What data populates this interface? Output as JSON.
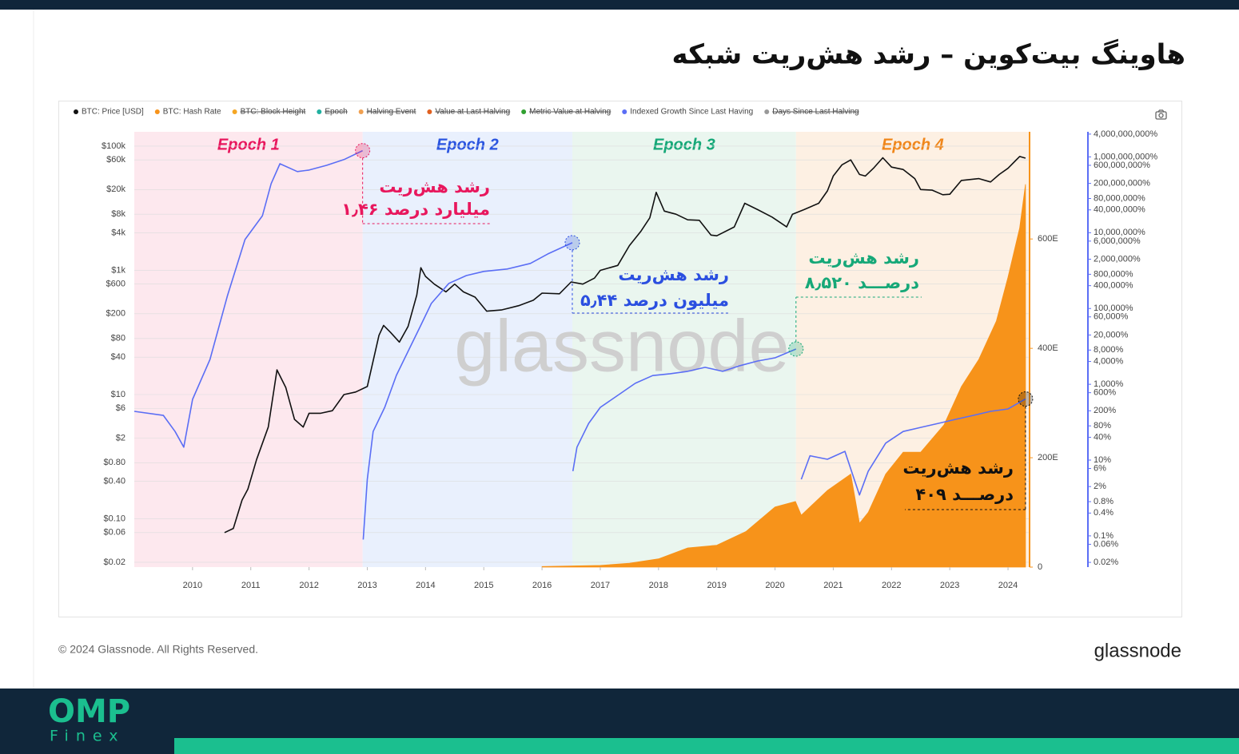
{
  "page_title": "هاوینگ بیت‌کوین – رشد هش‌ریت شبکه",
  "brand": "glassnode",
  "copyright": "© 2024 Glassnode. All Rights Reserved.",
  "logo": {
    "top": "OMP",
    "bottom": "Finex"
  },
  "chart_data": {
    "type": "line",
    "xlim": [
      2009.0,
      2024.37
    ],
    "xticks": [
      2010,
      2011,
      2012,
      2013,
      2014,
      2015,
      2016,
      2017,
      2018,
      2019,
      2020,
      2021,
      2022,
      2023,
      2024
    ],
    "ylim": [
      0.0167,
      170000
    ],
    "ylog": true,
    "yticks": [
      {
        "value": 100000,
        "label": "$100k"
      },
      {
        "value": 60000,
        "label": "$60k"
      },
      {
        "value": 20000,
        "label": "$20k"
      },
      {
        "value": 8000,
        "label": "$8k"
      },
      {
        "value": 4000,
        "label": "$4k"
      },
      {
        "value": 1000,
        "label": "$1k"
      },
      {
        "value": 600,
        "label": "$600"
      },
      {
        "value": 200,
        "label": "$200"
      },
      {
        "value": 80,
        "label": "$80"
      },
      {
        "value": 40,
        "label": "$40"
      },
      {
        "value": 10,
        "label": "$10"
      },
      {
        "value": 6,
        "label": "$6"
      },
      {
        "value": 2,
        "label": "$2"
      },
      {
        "value": 0.8,
        "label": "$0.80"
      },
      {
        "value": 0.4,
        "label": "$0.40"
      },
      {
        "value": 0.1,
        "label": "$0.10"
      },
      {
        "value": 0.06,
        "label": "$0.06"
      },
      {
        "value": 0.02,
        "label": "$0.02"
      }
    ],
    "y2lim": [
      0,
      796
    ],
    "y2ticks": [
      {
        "value": 600,
        "label": "600E"
      },
      {
        "value": 400,
        "label": "400E"
      },
      {
        "value": 200,
        "label": "200E"
      },
      0
    ],
    "y3lim": [
      0.015,
      4600000000
    ],
    "y3log": true,
    "y3ticks": [
      {
        "value": 4000000000,
        "label": "4,000,000,000%"
      },
      {
        "value": 1000000000,
        "label": "1,000,000,000%"
      },
      {
        "value": 600000000,
        "label": "600,000,000%"
      },
      {
        "value": 200000000,
        "label": "200,000,000%"
      },
      {
        "value": 80000000,
        "label": "80,000,000%"
      },
      {
        "value": 40000000,
        "label": "40,000,000%"
      },
      {
        "value": 10000000,
        "label": "10,000,000%"
      },
      {
        "value": 6000000,
        "label": "6,000,000%"
      },
      {
        "value": 2000000,
        "label": "2,000,000%"
      },
      {
        "value": 800000,
        "label": "800,000%"
      },
      {
        "value": 400000,
        "label": "400,000%"
      },
      {
        "value": 100000,
        "label": "100,000%"
      },
      {
        "value": 60000,
        "label": "60,000%"
      },
      {
        "value": 20000,
        "label": "20,000%"
      },
      {
        "value": 8000,
        "label": "8,000%"
      },
      {
        "value": 4000,
        "label": "4,000%"
      },
      {
        "value": 1000,
        "label": "1,000%"
      },
      {
        "value": 600,
        "label": "600%"
      },
      {
        "value": 200,
        "label": "200%"
      },
      {
        "value": 80,
        "label": "80%"
      },
      {
        "value": 40,
        "label": "40%"
      },
      {
        "value": 10,
        "label": "10%"
      },
      {
        "value": 6,
        "label": "6%"
      },
      {
        "value": 2,
        "label": "2%"
      },
      {
        "value": 0.8,
        "label": "0.8%"
      },
      {
        "value": 0.4,
        "label": "0.4%"
      },
      {
        "value": 0.1,
        "label": "0.1%"
      },
      {
        "value": 0.06,
        "label": "0.06%"
      },
      {
        "value": 0.02,
        "label": "0.02%"
      }
    ],
    "grid": true,
    "watermark": "glassnode",
    "epochs": [
      {
        "label": "Epoch 1",
        "start": 2009.0,
        "end": 2012.92,
        "color": "#e8175d",
        "band": "#fde8ee"
      },
      {
        "label": "Epoch 2",
        "start": 2012.92,
        "end": 2016.52,
        "color": "#2b55e0",
        "band": "#e9f0fd"
      },
      {
        "label": "Epoch 3",
        "start": 2016.52,
        "end": 2020.36,
        "color": "#16a878",
        "band": "#eaf6ef"
      },
      {
        "label": "Epoch 4",
        "start": 2020.36,
        "end": 2024.37,
        "color": "#f0861a",
        "band": "#fdf0e3"
      }
    ],
    "series": [
      {
        "name": "BTC: Price [USD]",
        "type": "line",
        "axis": "y",
        "color": "#111111",
        "x": [
          2010.55,
          2010.7,
          2010.85,
          2010.95,
          2011.1,
          2011.3,
          2011.45,
          2011.6,
          2011.75,
          2011.9,
          2012.0,
          2012.2,
          2012.4,
          2012.6,
          2012.8,
          2013.0,
          2013.2,
          2013.28,
          2013.4,
          2013.55,
          2013.7,
          2013.85,
          2013.92,
          2014.0,
          2014.15,
          2014.35,
          2014.5,
          2014.65,
          2014.85,
          2015.05,
          2015.3,
          2015.6,
          2015.85,
          2016.0,
          2016.3,
          2016.5,
          2016.7,
          2016.9,
          2017.0,
          2017.3,
          2017.5,
          2017.7,
          2017.85,
          2017.96,
          2018.1,
          2018.3,
          2018.5,
          2018.7,
          2018.9,
          2019.0,
          2019.3,
          2019.48,
          2019.7,
          2019.95,
          2020.2,
          2020.3,
          2020.5,
          2020.75,
          2020.9,
          2021.0,
          2021.15,
          2021.3,
          2021.45,
          2021.55,
          2021.7,
          2021.85,
          2022.0,
          2022.2,
          2022.4,
          2022.5,
          2022.7,
          2022.88,
          2023.0,
          2023.2,
          2023.5,
          2023.7,
          2023.85,
          2024.0,
          2024.2,
          2024.3
        ],
        "values": [
          0.06,
          0.07,
          0.2,
          0.3,
          0.9,
          3,
          25,
          13,
          4,
          3,
          5,
          5,
          5.5,
          10,
          11,
          13.5,
          90,
          130,
          100,
          70,
          125,
          400,
          1100,
          800,
          600,
          450,
          600,
          450,
          370,
          220,
          230,
          270,
          330,
          430,
          420,
          650,
          600,
          750,
          1000,
          1200,
          2500,
          4300,
          7000,
          18000,
          9000,
          8000,
          6500,
          6400,
          3700,
          3600,
          5000,
          12000,
          9500,
          7200,
          5000,
          8000,
          9500,
          12000,
          19000,
          33000,
          50000,
          60000,
          35000,
          33000,
          45000,
          65000,
          46000,
          42000,
          30000,
          20000,
          19500,
          16500,
          16800,
          28000,
          30000,
          26500,
          35000,
          44000,
          68000,
          64000
        ]
      },
      {
        "name": "BTC: Hash Rate",
        "type": "area",
        "axis": "y2",
        "color": "#f7931a",
        "x": [
          2016.0,
          2017.0,
          2017.5,
          2018.0,
          2018.5,
          2019.0,
          2019.5,
          2020.0,
          2020.35,
          2020.45,
          2020.9,
          2021.3,
          2021.45,
          2021.6,
          2021.9,
          2022.2,
          2022.5,
          2022.9,
          2023.2,
          2023.5,
          2023.8,
          2024.0,
          2024.2,
          2024.3
        ],
        "values": [
          1,
          3,
          7,
          15,
          35,
          40,
          65,
          110,
          120,
          95,
          140,
          170,
          80,
          100,
          170,
          210,
          210,
          260,
          330,
          380,
          450,
          530,
          620,
          700
        ]
      },
      {
        "name": "Indexed Growth Since Last Having",
        "type": "line",
        "axis": "y3",
        "color": "#5b6ef5",
        "x": [
          2009.0,
          2009.5,
          2009.7,
          2009.85,
          2010.0,
          2010.3,
          2010.6,
          2010.9,
          2011.2,
          2011.35,
          2011.5,
          2011.8,
          2012.0,
          2012.3,
          2012.6,
          2012.92,
          2012.92,
          2012.93,
          2013.0,
          2013.1,
          2013.3,
          2013.5,
          2013.7,
          2013.9,
          2014.1,
          2014.4,
          2014.7,
          2015.0,
          2015.4,
          2015.8,
          2016.1,
          2016.52,
          2016.52,
          2016.53,
          2016.6,
          2016.8,
          2017.0,
          2017.3,
          2017.6,
          2017.9,
          2018.2,
          2018.5,
          2018.8,
          2019.1,
          2019.4,
          2019.7,
          2020.0,
          2020.36,
          2020.36,
          2020.45,
          2020.6,
          2020.9,
          2021.2,
          2021.45,
          2021.6,
          2021.9,
          2022.2,
          2022.5,
          2022.8,
          2023.1,
          2023.4,
          2023.7,
          2024.0,
          2024.3
        ],
        "values": [
          193,
          151,
          57,
          22,
          400,
          4530,
          220000,
          6600000,
          28000000,
          197000000,
          660000000,
          410000000,
          450000000,
          600000000,
          850000000,
          1460000000,
          null,
          0.08,
          3.1,
          57,
          246,
          1720,
          7400,
          31600,
          136000,
          460000,
          740000,
          950000,
          1100000,
          1550000,
          2750000,
          5440000,
          null,
          5.1,
          22,
          93,
          246,
          510,
          1060,
          1700,
          1900,
          2200,
          2800,
          2200,
          3100,
          4100,
          5000,
          8520,
          null,
          3.1,
          13,
          10.5,
          17,
          1.2,
          5.1,
          28,
          57,
          73,
          93,
          119,
          151,
          193,
          224,
          409
        ]
      }
    ],
    "hidden_legend": [
      {
        "name": "BTC: Block Height",
        "color": "#f5a623"
      },
      {
        "name": "Epoch",
        "color": "#20b0a0"
      },
      {
        "name": "Halving Event",
        "color": "#f0a050"
      },
      {
        "name": "Value at Last Halving",
        "color": "#e06020"
      },
      {
        "name": "Metric Value at Halving",
        "color": "#30a030"
      },
      {
        "name": "Days Since Last Halving",
        "color": "#999999"
      }
    ],
    "annotations": [
      {
        "lines": [
          "رشد هش‌ریت",
          "۱٫۴۶ میلیارد درصد"
        ],
        "color": "#e8175d"
      },
      {
        "lines": [
          "رشد هش‌ریت",
          "۵٫۴۴ میلیون درصد"
        ],
        "color": "#2b4fe0"
      },
      {
        "lines": [
          "رشد هش‌ریت",
          "۸٫۵۲۰ درصـــد"
        ],
        "color": "#16a878"
      },
      {
        "lines": [
          "رشد هش‌ریت",
          "۴۰۹ درصـــد"
        ],
        "color": "#111111"
      }
    ]
  }
}
